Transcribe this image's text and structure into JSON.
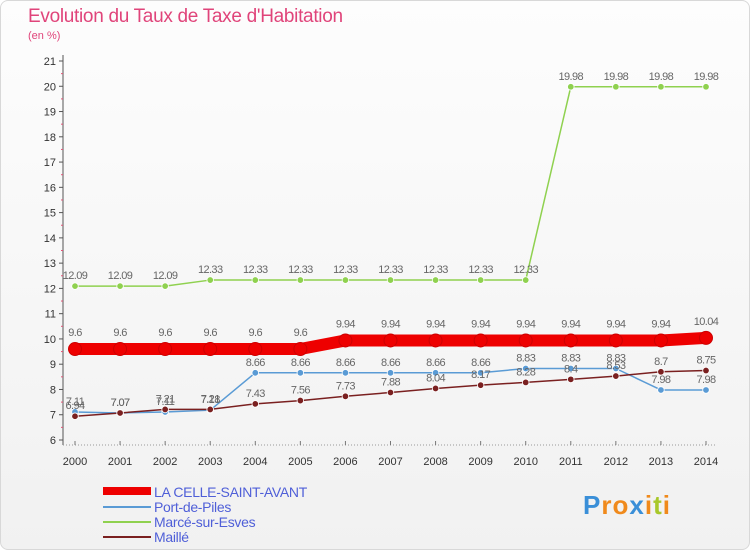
{
  "title": "Evolution du Taux de Taxe d'Habitation",
  "subtitle": "(en %)",
  "brand": {
    "letters": [
      "P",
      "r",
      "o",
      "x",
      "i",
      "t",
      "i"
    ],
    "colors": [
      "#3a8fd8",
      "#f08a1c",
      "#f08a1c",
      "#3a8fd8",
      "#f08a1c",
      "#a8c82a",
      "#f08a1c"
    ]
  },
  "chart_data": {
    "type": "line",
    "x": [
      "2000",
      "2001",
      "2002",
      "2003",
      "2004",
      "2005",
      "2006",
      "2007",
      "2008",
      "2009",
      "2010",
      "2011",
      "2012",
      "2013",
      "2014"
    ],
    "ylim": [
      6,
      21
    ],
    "yticks": [
      "6",
      "7",
      "8",
      "9",
      "10",
      "11",
      "12",
      "13",
      "14",
      "15",
      "16",
      "17",
      "18",
      "19",
      "20",
      "21"
    ],
    "grid": false,
    "legend_position": "bottom-left",
    "series": [
      {
        "name": "LA CELLE-SAINT-AVANT",
        "color": "#ee0000",
        "values": [
          9.6,
          9.6,
          9.6,
          9.6,
          9.6,
          9.6,
          9.94,
          9.94,
          9.94,
          9.94,
          9.94,
          9.94,
          9.94,
          9.94,
          10.04
        ],
        "labels": [
          "9.6",
          "9.6",
          "9.6",
          "9.6",
          "9.6",
          "9.6",
          "9.94",
          "9.94",
          "9.94",
          "9.94",
          "9.94",
          "9.94",
          "9.94",
          "9.94",
          "10.04"
        ]
      },
      {
        "name": "Port-de-Piles",
        "color": "#5a9bd5",
        "values": [
          7.11,
          7.07,
          7.11,
          7.18,
          8.66,
          8.66,
          8.66,
          8.66,
          8.66,
          8.66,
          8.83,
          8.83,
          8.83,
          7.98,
          7.98
        ],
        "labels": [
          "7.11",
          "7.07",
          "7.11",
          "7.18",
          "8.66",
          "8.66",
          "8.66",
          "8.66",
          "8.66",
          "8.66",
          "8.83",
          "8.83",
          "8.83",
          "7.98",
          "7.98"
        ]
      },
      {
        "name": "Marcé-sur-Esves",
        "color": "#8fd14f",
        "values": [
          12.09,
          12.09,
          12.09,
          12.33,
          12.33,
          12.33,
          12.33,
          12.33,
          12.33,
          12.33,
          12.33,
          19.98,
          19.98,
          19.98,
          19.98
        ],
        "labels": [
          "12.09",
          "12.09",
          "12.09",
          "12.33",
          "12.33",
          "12.33",
          "12.33",
          "12.33",
          "12.33",
          "12.33",
          "12.33",
          "19.98",
          "19.98",
          "19.98",
          "19.98"
        ]
      },
      {
        "name": "Maillé",
        "color": "#7a2020",
        "values": [
          6.94,
          7.07,
          7.21,
          7.21,
          7.43,
          7.56,
          7.73,
          7.88,
          8.04,
          8.17,
          8.28,
          8.4,
          8.53,
          8.7,
          8.75
        ],
        "labels": [
          "6.94",
          "7.07",
          "7.21",
          "7.21",
          "7.43",
          "7.56",
          "7.73",
          "7.88",
          "8.04",
          "8.17",
          "8.28",
          "8.4",
          "8.53",
          "8.7",
          "8.75"
        ]
      }
    ]
  }
}
